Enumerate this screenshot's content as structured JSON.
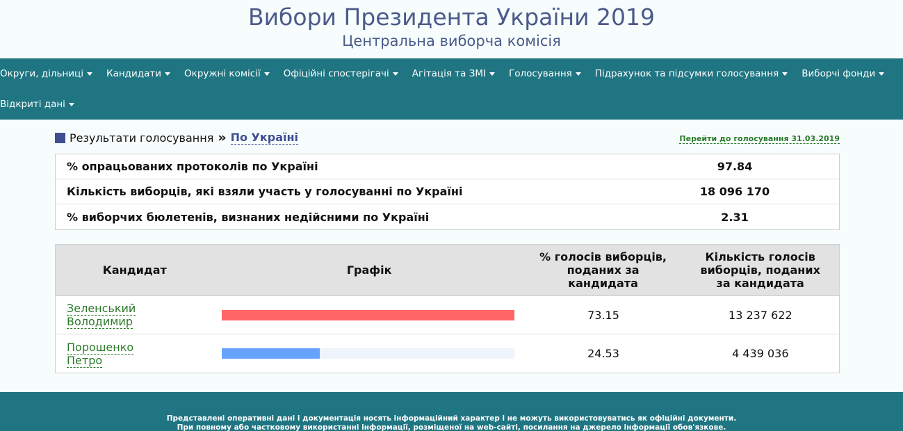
{
  "header": {
    "title": "Вибори Президента України 2019",
    "subtitle": "Центральна виборча комісія"
  },
  "nav": {
    "items": [
      {
        "label": "Округи, дільниці"
      },
      {
        "label": "Кандидати"
      },
      {
        "label": "Окружні комісії"
      },
      {
        "label": "Офіційні спостерігачі"
      },
      {
        "label": "Агітація та ЗМІ"
      },
      {
        "label": "Голосування"
      },
      {
        "label": "Підрахунок та підсумки голосування"
      },
      {
        "label": "Виборчі фонди"
      },
      {
        "label": "Відкриті дані"
      }
    ]
  },
  "breadcrumb": {
    "parent": "Результати голосування",
    "separator": "»",
    "current": "По Україні",
    "goto_link": "Перейти до голосування 31.03.2019"
  },
  "summary": {
    "rows": [
      {
        "label": "% опрацьованих протоколів по Україні",
        "value": "97.84"
      },
      {
        "label": "Кількість виборців, які взяли участь у голосуванні по Україні",
        "value": "18 096 170"
      },
      {
        "label": "% виборчих бюлетенів, визнаних недійсними по Україні",
        "value": "2.31"
      }
    ]
  },
  "results": {
    "headers": {
      "candidate": "Кандидат",
      "graph": "Графік",
      "percent_l1": "% голосів виборців,",
      "percent_l2": "поданих за",
      "percent_l3": "кандидата",
      "votes_l1": "Кількість голосів",
      "votes_l2": "виборців, поданих",
      "votes_l3": "за кандидата"
    },
    "rows": [
      {
        "name_l1": "Зеленський",
        "name_l2": "Володимир",
        "percent": "73.15",
        "votes": "13 237 622",
        "bar_fraction": 1.0,
        "bar_color": "#ff6666"
      },
      {
        "name_l1": "Порошенко",
        "name_l2": "Петро",
        "percent": "24.53",
        "votes": "4 439 036",
        "bar_fraction": 0.335,
        "bar_color": "#66a3ff"
      }
    ]
  },
  "footer": {
    "line1": "Представлені оперативні дані і документація носять інформаційний характер і не можуть використовуватись як офіційні документи.",
    "line2": "При повному або частковому використанні інформації, розміщеної на web-сайті, посилання на джерело інформації обов'язкове."
  }
}
